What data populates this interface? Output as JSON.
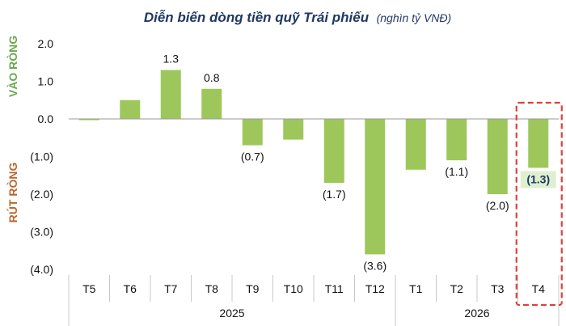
{
  "chart_data": {
    "type": "bar",
    "title": "Diễn biến dòng tiền quỹ Trái phiếu",
    "title_unit": "(nghìn tỷ VNĐ)",
    "categories": [
      "T5",
      "T6",
      "T7",
      "T8",
      "T9",
      "T10",
      "T11",
      "T12",
      "T1",
      "T2",
      "T3",
      "T4"
    ],
    "values": [
      -0.02,
      0.5,
      1.3,
      0.8,
      -0.7,
      -0.55,
      -1.7,
      -3.6,
      -1.35,
      -1.1,
      -2.0,
      -1.3
    ],
    "value_labels": [
      "",
      "",
      "1.3",
      "0.8",
      "(0.7)",
      "",
      "(1.7)",
      "(3.6)",
      "",
      "(1.1)",
      "(2.0)",
      "(1.3)"
    ],
    "year_groups": [
      {
        "label": "2025",
        "from": 0,
        "to": 7
      },
      {
        "label": "2026",
        "from": 8,
        "to": 11
      }
    ],
    "ylim": [
      -4.0,
      2.0
    ],
    "yticks": [
      2.0,
      1.0,
      0.0,
      -1.0,
      -2.0,
      -3.0,
      -4.0
    ],
    "ytick_labels": [
      "2.0",
      "1.0",
      "0.0",
      "(1.0)",
      "(2.0)",
      "(3.0)",
      "(4.0)"
    ],
    "positive_side_label": "VÀO RÒNG",
    "negative_side_label": "RÚT RÒNG",
    "highlight_index": 11,
    "grid": false,
    "colors": {
      "bar": "#9dc75a",
      "title": "#1f3864",
      "positive_label": "#6aa84f",
      "negative_label": "#b8692e",
      "highlight_box": "#d9433b",
      "highlight_label_bg": "#dff0d0"
    }
  }
}
